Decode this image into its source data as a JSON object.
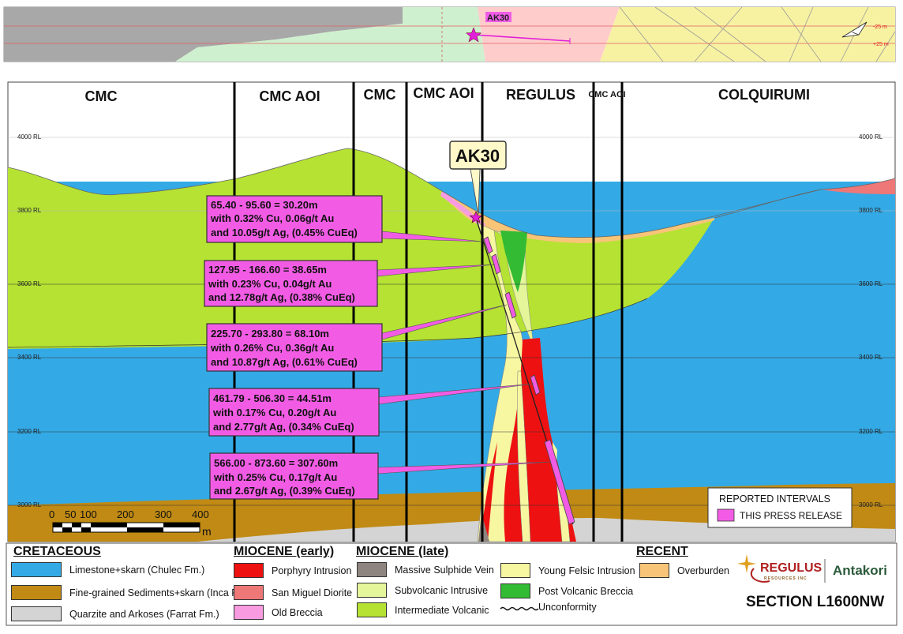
{
  "colors": {
    "limestone": "#33AAE6",
    "fine_sediments": "#C08A14",
    "quartzite": "#D4D4D4",
    "porphyry": "#EE1111",
    "san_miguel": "#EE7777",
    "old_breccia": "#F99BE0",
    "massive_sulphide": "#8E8480",
    "subvolcanic": "#E4F59A",
    "intermediate_volcanic": "#B5E233",
    "young_felsic": "#F7F7A2",
    "post_volcanic_breccia": "#33BB33",
    "overburden": "#F8C578",
    "intercept": "#F25CE5"
  },
  "plan_view": {
    "drillhole_label": "AK30",
    "depth_labels": [
      "-25 m",
      "+25 m"
    ]
  },
  "section": {
    "zones": [
      "CMC",
      "CMC AOI",
      "CMC",
      "CMC AOI",
      "REGULUS",
      "CMC AOI",
      "COLQUIRUMI"
    ],
    "rl_labels": [
      "4000 RL",
      "3800 RL",
      "3600 RL",
      "3400 RL",
      "3200 RL",
      "3000 RL"
    ],
    "drillhole_label": "AK30",
    "intervals": [
      {
        "line1": "65.40 - 95.60 = 30.20m",
        "line2": "with 0.32% Cu, 0.06g/t Au",
        "line3": "and 10.05g/t Ag, (0.45% CuEq)"
      },
      {
        "line1": "127.95 - 166.60 = 38.65m",
        "line2": "with 0.23% Cu, 0.04g/t Au",
        "line3": "and 12.78g/t Ag, (0.38% CuEq)"
      },
      {
        "line1": "225.70 - 293.80 = 68.10m",
        "line2": "with 0.26% Cu, 0.36g/t Au",
        "line3": "and 10.87g/t Ag, (0.61% CuEq)"
      },
      {
        "line1": "461.79 - 506.30 = 44.51m",
        "line2": "with 0.17% Cu, 0.20g/t Au",
        "line3": "and 2.77g/t Ag, (0.34% CuEq)"
      },
      {
        "line1": "566.00 - 873.60 = 307.60m",
        "line2": "with 0.25% Cu, 0.17g/t Au",
        "line3": "and 2.67g/t Ag, (0.39% CuEq)"
      }
    ],
    "scale": {
      "ticks": [
        "0",
        "50",
        "100",
        "200",
        "300",
        "400"
      ],
      "unit": "m"
    },
    "inset": {
      "title": "REPORTED INTERVALS",
      "item": "THIS PRESS RELEASE"
    }
  },
  "legend": {
    "cretaceous": {
      "title": "CRETACEOUS",
      "items": [
        "Limestone+skarn (Chulec Fm.)",
        "Fine-grained Sediments+skarn (Inca Fm.)",
        "Quarzite and Arkoses (Farrat Fm.)"
      ]
    },
    "miocene_early": {
      "title": "MIOCENE (early)",
      "items": [
        "Porphyry Intrusion",
        "San Miguel Diorite",
        "Old Breccia"
      ]
    },
    "miocene_late": {
      "title": "MIOCENE (late)",
      "items": [
        "Massive Sulphide Vein",
        "Subvolcanic Intrusive",
        "Intermediate Volcanic",
        "Young Felsic Intrusion",
        "Post Volcanic Breccia",
        "Unconformity"
      ]
    },
    "recent": {
      "title": "RECENT",
      "items": [
        "Overburden"
      ]
    }
  },
  "logos": {
    "regulus": "REGULUS",
    "regulus_sub": "RESOURCES INC",
    "antakori": "Antakori"
  },
  "section_title": "SECTION L1600NW"
}
